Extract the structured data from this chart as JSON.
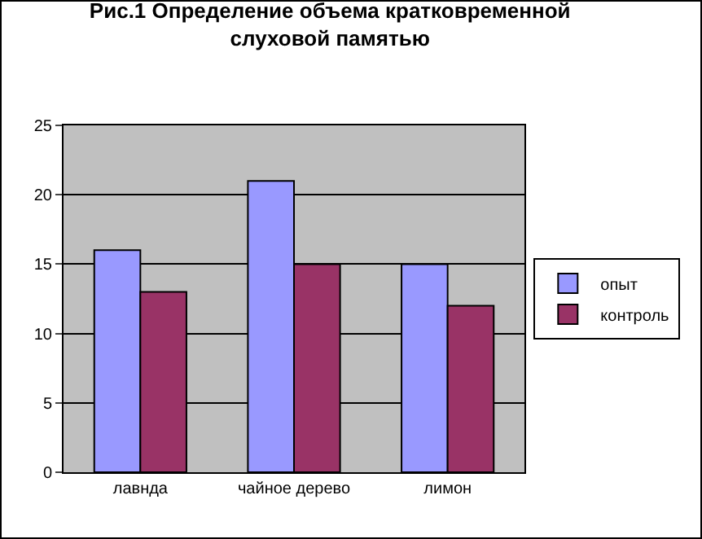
{
  "chart_data": {
    "type": "bar",
    "title": "Рис.1 Определение объема кратковременной слуховой памятью",
    "categories": [
      "лавнда",
      "чайное дерево",
      "лимон"
    ],
    "series": [
      {
        "name": "опыт",
        "color": "#9999ff",
        "values": [
          16,
          21,
          15
        ]
      },
      {
        "name": "контроль",
        "color": "#993366",
        "values": [
          13,
          15,
          12
        ]
      }
    ],
    "ylim": [
      0,
      25
    ],
    "yticks": [
      0,
      5,
      10,
      15,
      20,
      25
    ],
    "grid": "y",
    "legend": "right"
  }
}
